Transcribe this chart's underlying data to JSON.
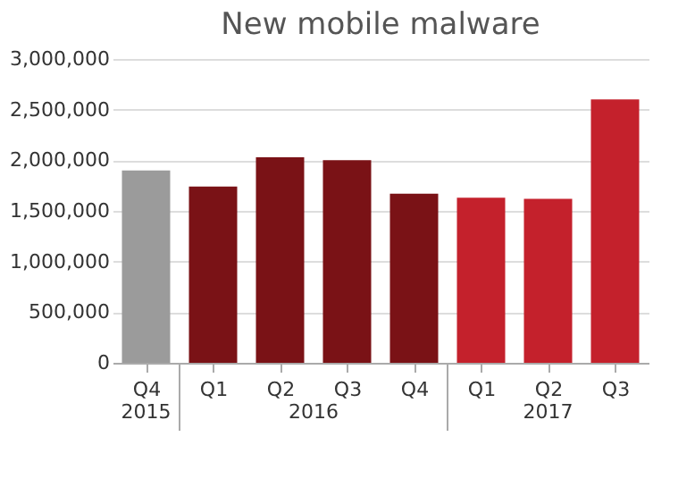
{
  "chart_data": {
    "type": "bar",
    "title": "New mobile malware",
    "categories": [
      "Q4",
      "Q1",
      "Q2",
      "Q3",
      "Q4",
      "Q1",
      "Q2",
      "Q3"
    ],
    "values": [
      1900000,
      1740000,
      2030000,
      2000000,
      1670000,
      1630000,
      1620000,
      2600000
    ],
    "colors": [
      "#9b9b9b",
      "#7a1216",
      "#7a1216",
      "#7a1216",
      "#7a1216",
      "#c4212c",
      "#c4212c",
      "#c4212c"
    ],
    "ylim": [
      0,
      3000000
    ],
    "yticks": [
      0,
      {
        "value": 500000,
        "label": "500,000"
      },
      {
        "value": 1000000,
        "label": "1,000,000"
      },
      {
        "value": 1500000,
        "label": "1,500,000"
      },
      {
        "value": 2000000,
        "label": "2,000,000"
      },
      {
        "value": 2500000,
        "label": "2,500,000"
      },
      {
        "value": 3000000,
        "label": "3,000,000"
      }
    ],
    "grid": "y",
    "annotations": [
      "2015",
      "2016",
      "2017"
    ]
  }
}
